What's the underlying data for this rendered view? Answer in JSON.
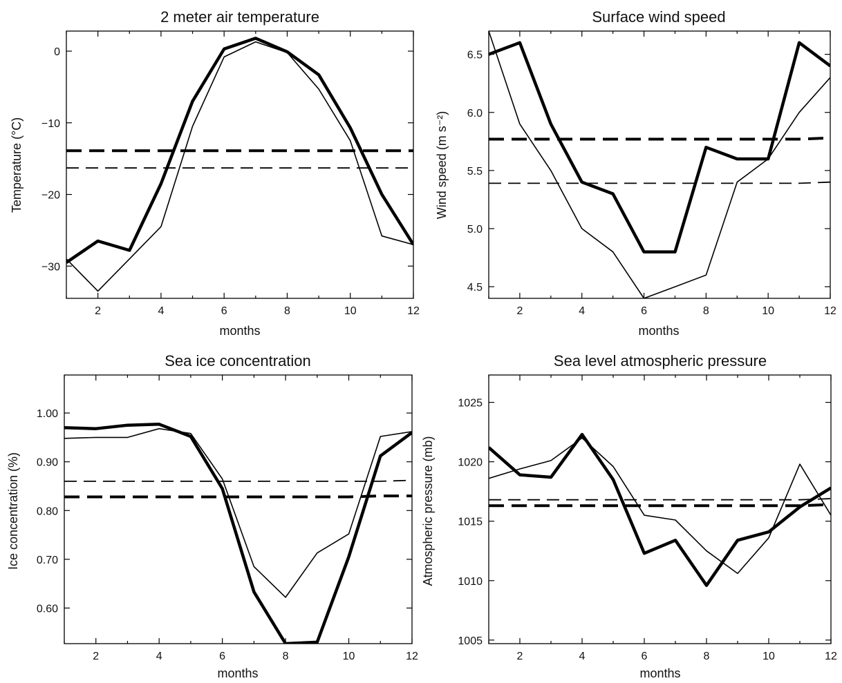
{
  "chart_data": [
    {
      "type": "line",
      "title": "2 meter air temperature",
      "xlabel": "months",
      "ylabel": "Temperature (°C)",
      "xlim": [
        1,
        12
      ],
      "ylim": [
        -34.5,
        2.8
      ],
      "xticks": [
        2,
        4,
        6,
        8,
        10,
        12
      ],
      "yticks": [
        0,
        -10,
        -20,
        -30
      ],
      "ytick_labels": [
        "0",
        "−10",
        "−20",
        "−30"
      ],
      "grid": false,
      "x": [
        1,
        2,
        3,
        4,
        5,
        6,
        7,
        8,
        9,
        10,
        11,
        12
      ],
      "series": [
        {
          "style": "thick-solid",
          "values": [
            -29.5,
            -26.5,
            -27.8,
            -18.5,
            -7.0,
            0.3,
            1.8,
            -0.1,
            -3.3,
            -10.7,
            -20.0,
            -27.0
          ]
        },
        {
          "style": "thin-solid",
          "values": [
            -29.0,
            -33.5,
            -29.0,
            -24.5,
            -10.5,
            -0.8,
            1.3,
            -0.2,
            -5.3,
            -12.5,
            -25.8,
            -27.0
          ]
        },
        {
          "style": "thick-dashed",
          "values": [
            -13.9,
            -13.9,
            -13.9,
            -13.9,
            -13.9,
            -13.9,
            -13.9,
            -13.9,
            -13.9,
            -13.9,
            -13.9,
            -13.9
          ]
        },
        {
          "style": "thin-dashed",
          "values": [
            -16.3,
            -16.3,
            -16.3,
            -16.3,
            -16.3,
            -16.3,
            -16.3,
            -16.3,
            -16.3,
            -16.3,
            -16.3,
            -16.3
          ]
        }
      ]
    },
    {
      "type": "line",
      "title": "Surface wind speed",
      "xlabel": "months",
      "ylabel": "Wind speed (m s⁻²)",
      "xlim": [
        1,
        12
      ],
      "ylim": [
        4.4,
        6.7
      ],
      "xticks": [
        2,
        4,
        6,
        8,
        10,
        12
      ],
      "yticks": [
        4.5,
        5.0,
        5.5,
        6.0,
        6.5
      ],
      "ytick_labels": [
        "4.5",
        "5.0",
        "5.5",
        "6.0",
        "6.5"
      ],
      "grid": false,
      "x": [
        1,
        2,
        3,
        4,
        5,
        6,
        7,
        8,
        9,
        10,
        11,
        12
      ],
      "series": [
        {
          "style": "thick-solid",
          "values": [
            6.5,
            6.6,
            5.9,
            5.4,
            5.3,
            4.8,
            4.8,
            5.7,
            5.6,
            5.6,
            6.6,
            6.4
          ]
        },
        {
          "style": "thin-solid",
          "values": [
            6.7,
            5.9,
            5.5,
            5.0,
            4.8,
            4.4,
            4.5,
            4.6,
            5.4,
            5.6,
            6.0,
            6.3
          ]
        },
        {
          "style": "thick-dashed",
          "values": [
            5.77,
            5.77,
            5.77,
            5.77,
            5.77,
            5.77,
            5.77,
            5.77,
            5.77,
            5.77,
            5.77,
            5.78
          ]
        },
        {
          "style": "thin-dashed",
          "values": [
            5.39,
            5.39,
            5.39,
            5.39,
            5.39,
            5.39,
            5.39,
            5.39,
            5.39,
            5.39,
            5.39,
            5.4
          ]
        }
      ]
    },
    {
      "type": "line",
      "title": "Sea ice concentration",
      "xlabel": "months",
      "ylabel": "Ice concentration (%)",
      "xlim": [
        1,
        12
      ],
      "ylim": [
        0.527,
        1.078
      ],
      "xticks": [
        2,
        4,
        6,
        8,
        10,
        12
      ],
      "yticks": [
        0.6,
        0.7,
        0.8,
        0.9,
        1.0
      ],
      "ytick_labels": [
        "0.60",
        "0.70",
        "0.80",
        "0.90",
        "1.00"
      ],
      "grid": false,
      "x": [
        1,
        2,
        3,
        4,
        5,
        6,
        7,
        8,
        9,
        10,
        11,
        12
      ],
      "series": [
        {
          "style": "thick-solid",
          "values": [
            0.97,
            0.968,
            0.975,
            0.977,
            0.952,
            0.845,
            0.633,
            0.527,
            0.53,
            0.705,
            0.912,
            0.96
          ]
        },
        {
          "style": "thin-solid",
          "values": [
            0.948,
            0.95,
            0.95,
            0.968,
            0.958,
            0.865,
            0.685,
            0.622,
            0.713,
            0.752,
            0.952,
            0.962
          ]
        },
        {
          "style": "thick-dashed",
          "values": [
            0.828,
            0.828,
            0.828,
            0.828,
            0.828,
            0.828,
            0.828,
            0.828,
            0.828,
            0.828,
            0.83,
            0.83
          ]
        },
        {
          "style": "thin-dashed",
          "values": [
            0.86,
            0.86,
            0.86,
            0.86,
            0.86,
            0.86,
            0.86,
            0.86,
            0.86,
            0.86,
            0.86,
            0.862
          ]
        }
      ]
    },
    {
      "type": "line",
      "title": "Sea level atmospheric pressure",
      "xlabel": "months",
      "ylabel": "Atmospheric pressure (mb)",
      "xlim": [
        1,
        12
      ],
      "ylim": [
        1004.7,
        1027.3
      ],
      "xticks": [
        2,
        4,
        6,
        8,
        10,
        12
      ],
      "yticks": [
        1005,
        1010,
        1015,
        1020,
        1025
      ],
      "ytick_labels": [
        "1005",
        "1010",
        "1015",
        "1020",
        "1025"
      ],
      "grid": false,
      "x": [
        1,
        2,
        3,
        4,
        5,
        6,
        7,
        8,
        9,
        10,
        11,
        12
      ],
      "series": [
        {
          "style": "thick-solid",
          "values": [
            1021.2,
            1018.9,
            1018.7,
            1022.3,
            1018.5,
            1012.3,
            1013.4,
            1009.6,
            1013.4,
            1014.1,
            1016.2,
            1017.8
          ]
        },
        {
          "style": "thin-solid",
          "values": [
            1018.6,
            1019.4,
            1020.1,
            1022.0,
            1019.6,
            1015.5,
            1015.1,
            1012.5,
            1010.6,
            1013.6,
            1019.8,
            1015.5
          ]
        },
        {
          "style": "thick-dashed",
          "values": [
            1016.3,
            1016.3,
            1016.3,
            1016.3,
            1016.3,
            1016.3,
            1016.3,
            1016.3,
            1016.3,
            1016.3,
            1016.3,
            1016.4
          ]
        },
        {
          "style": "thin-dashed",
          "values": [
            1016.8,
            1016.8,
            1016.8,
            1016.8,
            1016.8,
            1016.8,
            1016.8,
            1016.8,
            1016.8,
            1016.8,
            1016.8,
            1016.9
          ]
        }
      ]
    }
  ]
}
